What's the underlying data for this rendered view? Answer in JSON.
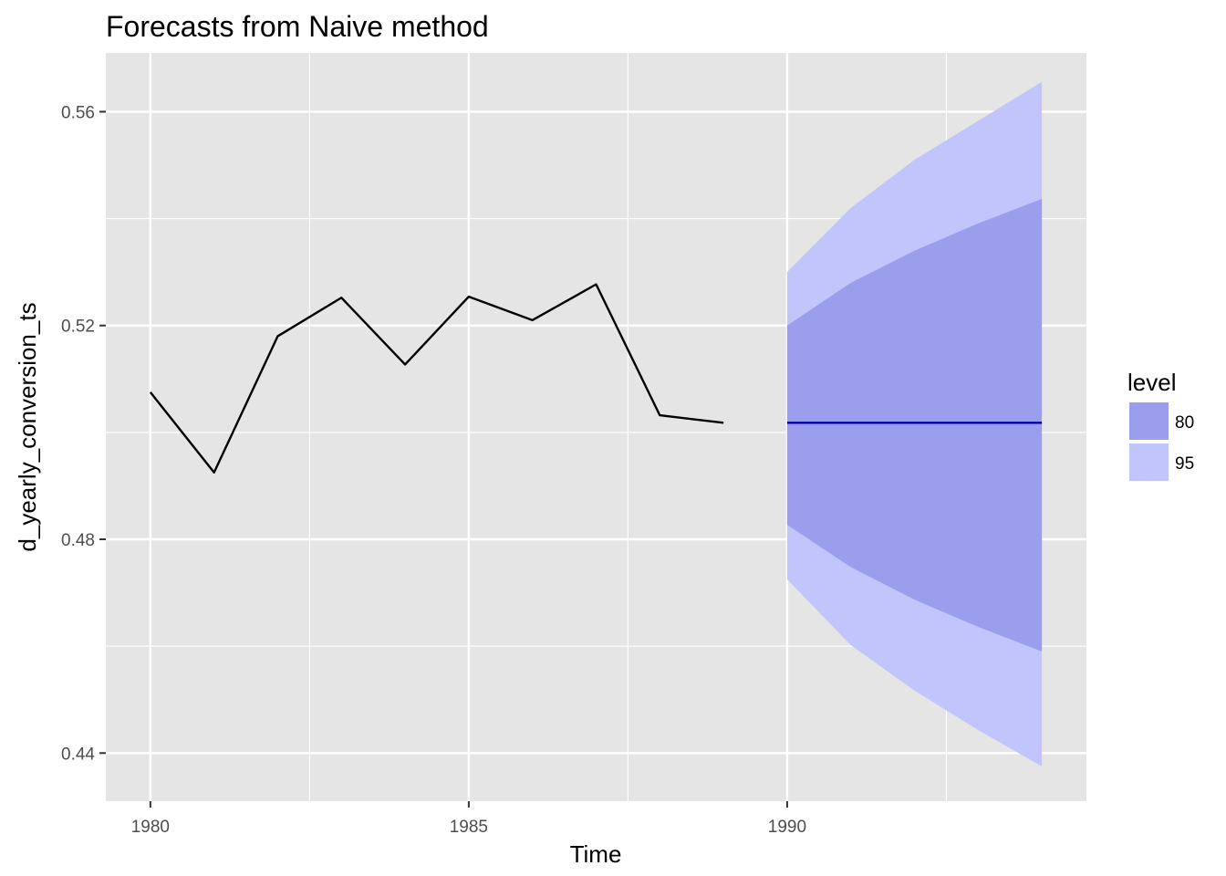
{
  "chart_data": {
    "type": "line",
    "title": "Forecasts from Naive method",
    "xlabel": "Time",
    "ylabel": "d_yearly_conversion_ts",
    "xlim": [
      1979.3,
      1994.7
    ],
    "ylim": [
      0.431,
      0.571
    ],
    "x_ticks": [
      1980,
      1985,
      1990
    ],
    "x_tick_labels": [
      "1980",
      "1985",
      "1990"
    ],
    "x_minor_ticks": [
      1982.5,
      1987.5,
      1992.5
    ],
    "y_ticks": [
      0.44,
      0.48,
      0.52,
      0.56
    ],
    "y_tick_labels": [
      "0.44",
      "0.48",
      "0.52",
      "0.56"
    ],
    "y_minor_ticks": [
      0.46,
      0.5,
      0.54
    ],
    "grid": true,
    "legend_position": "right",
    "legend_title": "level",
    "history": {
      "x": [
        1980,
        1981,
        1982,
        1983,
        1984,
        1985,
        1986,
        1987,
        1988,
        1989
      ],
      "y": [
        0.5075,
        0.4925,
        0.518,
        0.5252,
        0.5127,
        0.5254,
        0.521,
        0.5277,
        0.5032,
        0.5018
      ]
    },
    "forecast": {
      "x": [
        1990,
        1991,
        1992,
        1993,
        1994
      ],
      "mean": [
        0.5018,
        0.5018,
        0.5018,
        0.5018,
        0.5018
      ],
      "lower80": [
        0.4827,
        0.4748,
        0.4687,
        0.4636,
        0.459
      ],
      "upper80": [
        0.52,
        0.528,
        0.534,
        0.5391,
        0.5437
      ],
      "lower95": [
        0.4725,
        0.4602,
        0.4517,
        0.4443,
        0.4375
      ],
      "upper95": [
        0.53,
        0.542,
        0.551,
        0.5583,
        0.5656
      ]
    },
    "series": [
      {
        "name": "80",
        "color": "#9b9eed"
      },
      {
        "name": "95",
        "color": "#c2c4fc"
      }
    ],
    "colors": {
      "panel": "#e5e5e5",
      "grid": "#ffffff",
      "history_line": "#000000",
      "forecast_line": "#0000aa"
    }
  }
}
